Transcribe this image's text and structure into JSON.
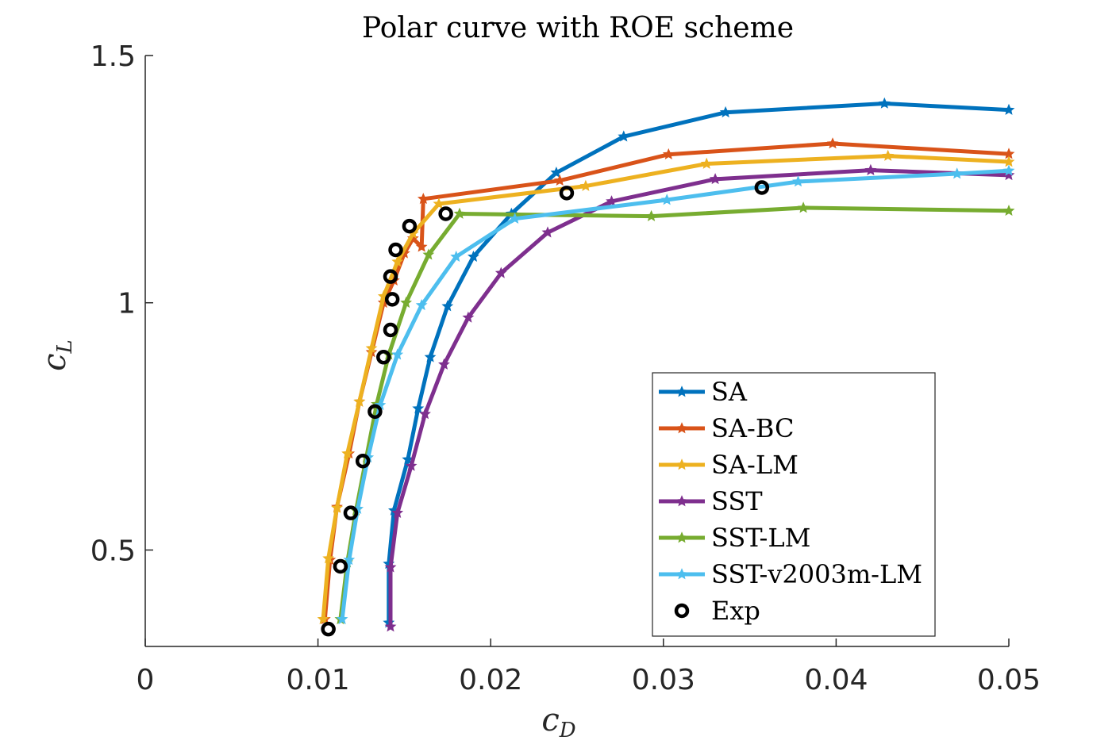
{
  "chart_data": {
    "type": "line",
    "title": "Polar curve with ROE scheme",
    "xlabel": {
      "main": "c",
      "sub": "D"
    },
    "ylabel": {
      "main": "c",
      "sub": "L"
    },
    "xlim": [
      0,
      0.05
    ],
    "ylim": [
      0.305,
      1.5
    ],
    "xticks": [
      {
        "value": 0,
        "label": "0"
      },
      {
        "value": 0.01,
        "label": "0.01"
      },
      {
        "value": 0.02,
        "label": "0.02"
      },
      {
        "value": 0.03,
        "label": "0.03"
      },
      {
        "value": 0.04,
        "label": "0.04"
      },
      {
        "value": 0.05,
        "label": "0.05"
      }
    ],
    "yticks": [
      {
        "value": 0.5,
        "label": "0.5"
      },
      {
        "value": 1,
        "label": "1"
      },
      {
        "value": 1.5,
        "label": "1.5"
      }
    ],
    "grid": false,
    "legend_position": "bottom-right",
    "series": [
      {
        "name": "SA",
        "color": "#0072BD",
        "marker": "star",
        "points": [
          [
            0.0141,
            0.353
          ],
          [
            0.0141,
            0.472
          ],
          [
            0.0144,
            0.58
          ],
          [
            0.0152,
            0.683
          ],
          [
            0.0158,
            0.786
          ],
          [
            0.0165,
            0.89
          ],
          [
            0.0175,
            0.993
          ],
          [
            0.019,
            1.093
          ],
          [
            0.0212,
            1.18
          ],
          [
            0.0238,
            1.263
          ],
          [
            0.0277,
            1.336
          ],
          [
            0.0336,
            1.385
          ],
          [
            0.0428,
            1.403
          ],
          [
            0.05,
            1.39
          ]
        ]
      },
      {
        "name": "SA-BC",
        "color": "#D95319",
        "marker": "star",
        "points": [
          [
            0.0104,
            0.36
          ],
          [
            0.0107,
            0.48
          ],
          [
            0.0111,
            0.587
          ],
          [
            0.0118,
            0.695
          ],
          [
            0.0124,
            0.8
          ],
          [
            0.0131,
            0.9
          ],
          [
            0.0138,
            1.0
          ],
          [
            0.0144,
            1.045
          ],
          [
            0.015,
            1.1
          ],
          [
            0.0155,
            1.13
          ],
          [
            0.016,
            1.113
          ],
          [
            0.0161,
            1.21
          ],
          [
            0.024,
            1.247
          ],
          [
            0.0303,
            1.3
          ],
          [
            0.0398,
            1.322
          ],
          [
            0.05,
            1.301
          ]
        ]
      },
      {
        "name": "SA-LM",
        "color": "#EDB120",
        "marker": "star",
        "points": [
          [
            0.0103,
            0.36
          ],
          [
            0.0106,
            0.483
          ],
          [
            0.0111,
            0.585
          ],
          [
            0.0117,
            0.695
          ],
          [
            0.0124,
            0.8
          ],
          [
            0.0131,
            0.908
          ],
          [
            0.0138,
            1.013
          ],
          [
            0.0146,
            1.083
          ],
          [
            0.0155,
            1.14
          ],
          [
            0.017,
            1.2
          ],
          [
            0.0255,
            1.236
          ],
          [
            0.0325,
            1.281
          ],
          [
            0.043,
            1.297
          ],
          [
            0.05,
            1.285
          ]
        ]
      },
      {
        "name": "SST",
        "color": "#7E2F8E",
        "marker": "star",
        "points": [
          [
            0.0142,
            0.345
          ],
          [
            0.0142,
            0.465
          ],
          [
            0.0146,
            0.575
          ],
          [
            0.0154,
            0.67
          ],
          [
            0.0162,
            0.775
          ],
          [
            0.0173,
            0.875
          ],
          [
            0.0187,
            0.97
          ],
          [
            0.0206,
            1.06
          ],
          [
            0.0233,
            1.142
          ],
          [
            0.027,
            1.205
          ],
          [
            0.033,
            1.25
          ],
          [
            0.042,
            1.268
          ],
          [
            0.05,
            1.258
          ]
        ]
      },
      {
        "name": "SST-LM",
        "color": "#77AC30",
        "marker": "star",
        "points": [
          [
            0.0113,
            0.36
          ],
          [
            0.0117,
            0.475
          ],
          [
            0.0122,
            0.58
          ],
          [
            0.0128,
            0.687
          ],
          [
            0.0134,
            0.795
          ],
          [
            0.0141,
            0.895
          ],
          [
            0.0151,
            1.0
          ],
          [
            0.0164,
            1.097
          ],
          [
            0.0182,
            1.18
          ],
          [
            0.0293,
            1.175
          ],
          [
            0.0381,
            1.192
          ],
          [
            0.05,
            1.186
          ]
        ]
      },
      {
        "name": "SST-v2003m-LM",
        "color": "#4DBEEE",
        "marker": "star",
        "points": [
          [
            0.0114,
            0.36
          ],
          [
            0.0118,
            0.48
          ],
          [
            0.0123,
            0.583
          ],
          [
            0.0129,
            0.687
          ],
          [
            0.0136,
            0.793
          ],
          [
            0.0146,
            0.895
          ],
          [
            0.016,
            0.995
          ],
          [
            0.018,
            1.093
          ],
          [
            0.0214,
            1.17
          ],
          [
            0.0302,
            1.208
          ],
          [
            0.0378,
            1.245
          ],
          [
            0.047,
            1.261
          ],
          [
            0.05,
            1.267
          ]
        ]
      },
      {
        "name": "Exp",
        "color": "#000000",
        "marker": "circle",
        "line": false,
        "points": [
          [
            0.0106,
            0.34
          ],
          [
            0.0113,
            0.467
          ],
          [
            0.0119,
            0.575
          ],
          [
            0.0126,
            0.68
          ],
          [
            0.0133,
            0.78
          ],
          [
            0.0138,
            0.89
          ],
          [
            0.0142,
            0.945
          ],
          [
            0.0143,
            1.007
          ],
          [
            0.0142,
            1.053
          ],
          [
            0.0145,
            1.107
          ],
          [
            0.0153,
            1.155
          ],
          [
            0.0174,
            1.18
          ],
          [
            0.0244,
            1.222
          ],
          [
            0.0357,
            1.233
          ]
        ]
      }
    ]
  }
}
